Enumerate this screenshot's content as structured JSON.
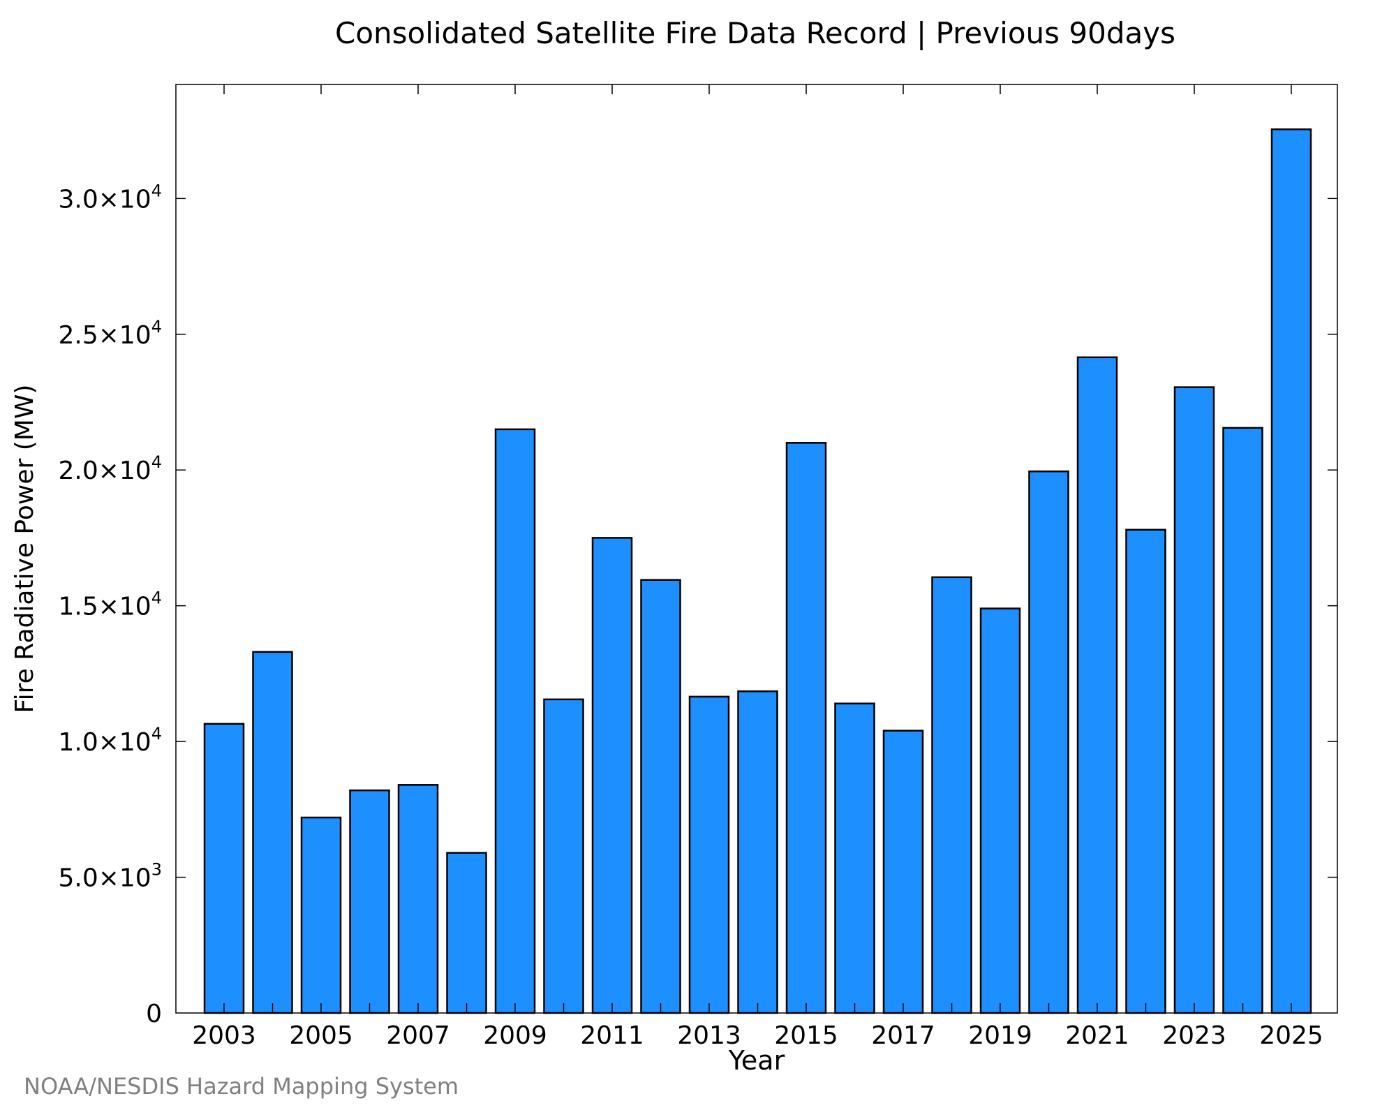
{
  "chart_data": {
    "type": "bar",
    "title": "Consolidated Satellite Fire Data Record | Previous 90days",
    "xlabel": "Year",
    "ylabel": "Fire Radiative Power (MW)",
    "categories": [
      "2003",
      "2004",
      "2005",
      "2006",
      "2007",
      "2008",
      "2009",
      "2010",
      "2011",
      "2012",
      "2013",
      "2014",
      "2015",
      "2016",
      "2017",
      "2018",
      "2019",
      "2020",
      "2021",
      "2022",
      "2023",
      "2024",
      "2025"
    ],
    "values": [
      10650,
      13300,
      7200,
      8200,
      8400,
      5900,
      21500,
      11550,
      17500,
      15950,
      11650,
      11850,
      21000,
      11400,
      10400,
      16050,
      14900,
      19950,
      24150,
      17800,
      23050,
      21550,
      32550
    ],
    "ylim": [
      0,
      34200
    ],
    "yticks": [
      {
        "value": 0,
        "mantissa": "0",
        "exponent": ""
      },
      {
        "value": 5000,
        "mantissa": "5.0×10",
        "exponent": "3"
      },
      {
        "value": 10000,
        "mantissa": "1.0×10",
        "exponent": "4"
      },
      {
        "value": 15000,
        "mantissa": "1.5×10",
        "exponent": "4"
      },
      {
        "value": 20000,
        "mantissa": "2.0×10",
        "exponent": "4"
      },
      {
        "value": 25000,
        "mantissa": "2.5×10",
        "exponent": "4"
      },
      {
        "value": 30000,
        "mantissa": "3.0×10",
        "exponent": "4"
      }
    ],
    "xtick_labels": [
      "2003",
      "2005",
      "2007",
      "2009",
      "2011",
      "2013",
      "2015",
      "2017",
      "2019",
      "2021",
      "2023",
      "2025"
    ],
    "bar_color": "#1e8fff",
    "bar_edge_color": "#000000",
    "grid": false,
    "legend": "none"
  },
  "credit": "NOAA/NESDIS Hazard Mapping System"
}
